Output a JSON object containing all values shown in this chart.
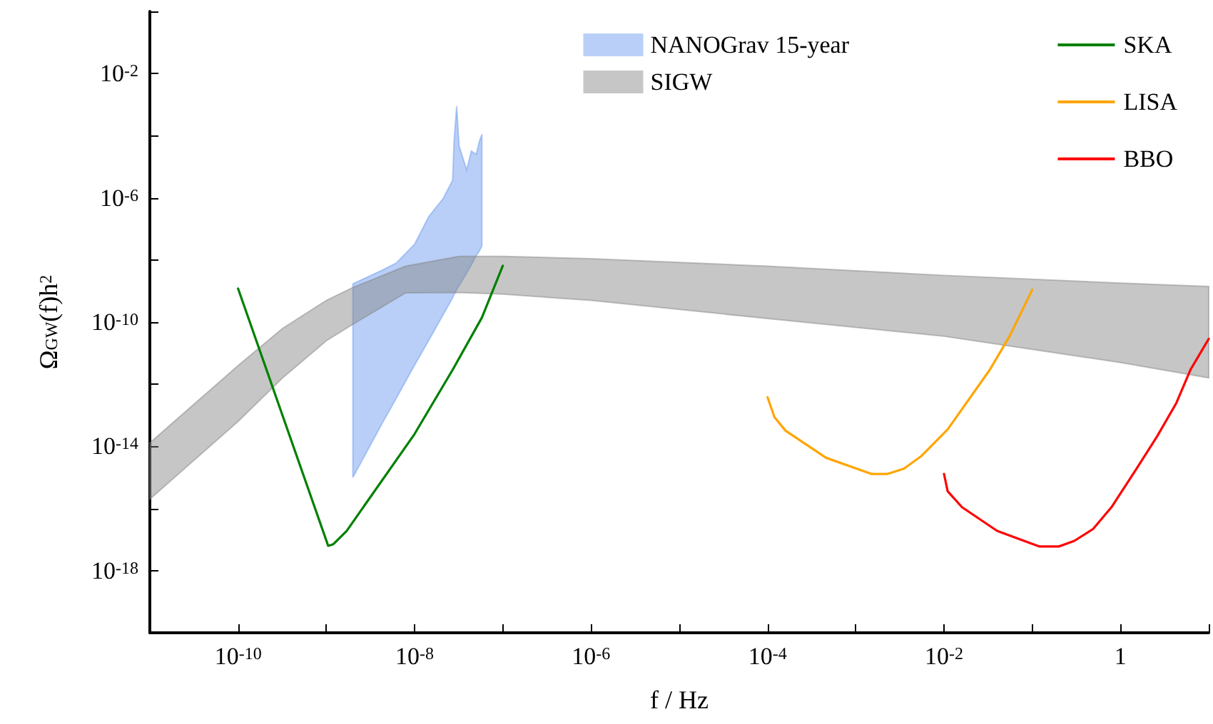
{
  "chart_data": {
    "type": "line",
    "xlabel": "f / Hz",
    "ylabel": "Ω$_{GW}$(f)h$^{2}$",
    "log": "xy",
    "grid": false,
    "legend": "top right",
    "marker": "none",
    "line_style": "solid",
    "xlim": [
      1e-11,
      10
    ],
    "ylim": [
      1e-20,
      1
    ],
    "xticks": [
      {
        "value": 1e-11,
        "label": null
      },
      {
        "value": 1e-10,
        "label": "10$^{-10}$"
      },
      {
        "value": 1e-09,
        "label": null
      },
      {
        "value": 1e-08,
        "label": "10$^{-8}$"
      },
      {
        "value": 1e-07,
        "label": null
      },
      {
        "value": 1e-06,
        "label": "10$^{-6}$"
      },
      {
        "value": 1e-05,
        "label": null
      },
      {
        "value": 0.0001,
        "label": "10$^{-4}$"
      },
      {
        "value": 0.001,
        "label": null
      },
      {
        "value": 0.01,
        "label": "10$^{-2}$"
      },
      {
        "value": 0.1,
        "label": null
      },
      {
        "value": 1,
        "label": "1"
      },
      {
        "value": 10,
        "label": null
      }
    ],
    "yticks": [
      {
        "value": 1e-20,
        "label": null
      },
      {
        "value": 1e-18,
        "label": "10$^{-18}$"
      },
      {
        "value": 1e-16,
        "label": null
      },
      {
        "value": 1e-14,
        "label": "10$^{-14}$"
      },
      {
        "value": 1e-12,
        "label": null
      },
      {
        "value": 1e-10,
        "label": "10$^{-10}$"
      },
      {
        "value": 1e-08,
        "label": null
      },
      {
        "value": 1e-06,
        "label": "10$^{-6}$"
      },
      {
        "value": 0.0001,
        "label": null
      },
      {
        "value": 0.01,
        "label": "10$^{-2}$"
      },
      {
        "value": 1,
        "label": null
      }
    ],
    "series": [
      {
        "name": "NANOGrav 15-year",
        "type": "area",
        "color": "#6495ed",
        "values": [
          null,
          null,
          null,
          null,
          null,
          null,
          null,
          null,
          null,
          null,
          null,
          null,
          null,
          null,
          null
        ],
        "x": [
          2e-09,
          4.3e-09,
          6.2e-09,
          1e-08,
          1.45e-08,
          2.1e-08,
          2.7e-08,
          2.8e-08,
          3e-08,
          3.2e-08,
          3.9e-08,
          4.4e-08,
          5e-08,
          5.4e-08,
          5.8e-08
        ],
        "upper": [
          1.7e-09,
          4.7e-09,
          7.9e-09,
          3.2e-08,
          2.5e-07,
          9.3e-07,
          3.7e-06,
          6.3e-05,
          0.00089,
          4.7e-05,
          7.9e-06,
          3.2e-05,
          2.5e-05,
          6.3e-05,
          0.00011
        ],
        "lower": [
          1e-15,
          5.5e-14,
          3.5e-13,
          4.1e-12,
          2.6e-11,
          1.7e-10,
          6e-10,
          7.6e-10,
          1.1e-09,
          1.5e-09,
          3.8e-09,
          6.9e-09,
          1.4e-08,
          1.9e-08,
          2.8e-08
        ]
      },
      {
        "name": "SIGW",
        "type": "area",
        "color": "#808080",
        "values": [
          null,
          null,
          null,
          null,
          null,
          null,
          null,
          null,
          null,
          null,
          null,
          null,
          null
        ],
        "x": [
          1e-11,
          1e-10,
          3.2e-10,
          1e-09,
          2e-09,
          7.9e-09,
          3.2e-08,
          1e-07,
          1e-06,
          0.0001,
          0.01,
          1,
          10
        ],
        "upper": [
          1.3e-14,
          4e-12,
          6.3e-11,
          5e-10,
          1.3e-09,
          6.3e-09,
          1.3e-08,
          1.3e-08,
          1.1e-08,
          6.3e-09,
          3.2e-09,
          1.8e-09,
          1.4e-09
        ],
        "lower": [
          2e-16,
          6.3e-14,
          1.6e-12,
          2.5e-11,
          8.5e-11,
          8.7e-10,
          8.9e-10,
          7.9e-10,
          5e-10,
          1.3e-10,
          3.5e-11,
          5e-12,
          1.6e-12
        ]
      },
      {
        "name": "SKA",
        "color": "#008000",
        "x": [
          1e-10,
          1.05e-09,
          1.2e-09,
          1.7e-09,
          1e-08,
          2.7e-08,
          5.8e-08,
          1e-07
        ],
        "values": [
          1.2e-09,
          6.3e-18,
          7.1e-18,
          1.9e-17,
          2.5e-14,
          2.9e-12,
          1.4e-10,
          6.5e-09
        ]
      },
      {
        "name": "LISA",
        "color": "#ffa500",
        "x": [
          0.0001,
          0.00012,
          0.00016,
          0.00046,
          0.0015,
          0.0023,
          0.0035,
          0.0055,
          0.011,
          0.033,
          0.055,
          0.1
        ],
        "values": [
          3.8e-13,
          8.7e-14,
          3.2e-14,
          4.3e-15,
          1.3e-15,
          1.3e-15,
          1.9e-15,
          4.8e-15,
          3.5e-14,
          2.9e-12,
          3.4e-11,
          1.1e-09
        ]
      },
      {
        "name": "BBO",
        "color": "#ff0000",
        "x": [
          0.01,
          0.011,
          0.016,
          0.04,
          0.12,
          0.2,
          0.3,
          0.49,
          0.79,
          1.5,
          2.6,
          4.3,
          6.2,
          10
        ],
        "values": [
          1.3e-15,
          3.6e-16,
          1.1e-16,
          1.9e-17,
          6e-18,
          6e-18,
          9.1e-18,
          2.2e-17,
          1.1e-16,
          1.8e-15,
          2.1e-14,
          2.5e-13,
          2.9e-12,
          2.9e-11
        ]
      }
    ]
  }
}
